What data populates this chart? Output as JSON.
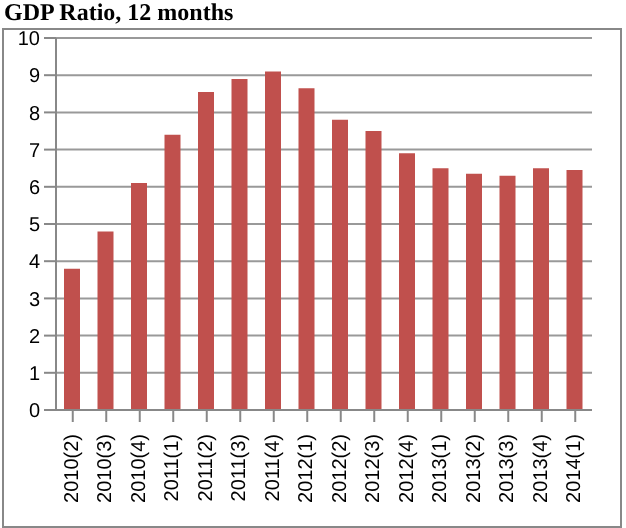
{
  "chart_data": {
    "type": "bar",
    "title": "GDP Ratio, 12 months",
    "categories": [
      "2010(2)",
      "2010(3)",
      "2010(4)",
      "2011(1)",
      "2011(2)",
      "2011(3)",
      "2011(4)",
      "2012(1)",
      "2012(2)",
      "2012(3)",
      "2012(4)",
      "2013(1)",
      "2013(2)",
      "2013(3)",
      "2013(4)",
      "2014(1)"
    ],
    "values": [
      3.8,
      4.8,
      6.1,
      7.4,
      8.55,
      8.9,
      9.1,
      8.65,
      7.8,
      7.5,
      6.9,
      6.5,
      6.35,
      6.3,
      6.5,
      6.45
    ],
    "color": "#c0504d",
    "ylim": [
      0,
      10
    ],
    "yticks": [
      0,
      1,
      2,
      3,
      4,
      5,
      6,
      7,
      8,
      9,
      10
    ],
    "grid": "y",
    "legend": false
  }
}
